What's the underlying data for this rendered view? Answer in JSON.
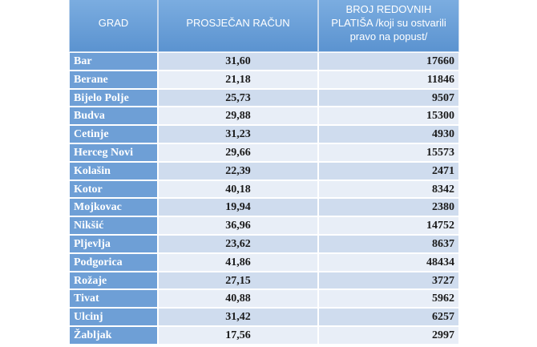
{
  "table": {
    "header": [
      "GRAD",
      "PROSJEČAN RAČUN",
      "BROJ REDOVNIH PLATIŠA /koji su ostvarili pravo na popust/"
    ],
    "rows": [
      [
        "Bar",
        "31,60",
        "17660"
      ],
      [
        "Berane",
        "21,18",
        "11846"
      ],
      [
        "Bijelo Polje",
        "25,73",
        "9507"
      ],
      [
        "Budva",
        "29,88",
        "15300"
      ],
      [
        "Cetinje",
        "31,23",
        "4930"
      ],
      [
        "Herceg Novi",
        "29,66",
        "15573"
      ],
      [
        "Kolašin",
        "22,39",
        "2471"
      ],
      [
        "Kotor",
        "40,18",
        "8342"
      ],
      [
        "Mojkovac",
        "19,94",
        "2380"
      ],
      [
        "Nikšić",
        "36,96",
        "14752"
      ],
      [
        "Pljevlja",
        "23,62",
        "8637"
      ],
      [
        "Podgorica",
        "41,86",
        "48434"
      ],
      [
        "Rožaje",
        "27,15",
        "3727"
      ],
      [
        "Tivat",
        "40,88",
        "5962"
      ],
      [
        "Ulcinj",
        "31,42",
        "6257"
      ],
      [
        "Žabljak",
        "17,56",
        "2997"
      ]
    ]
  }
}
